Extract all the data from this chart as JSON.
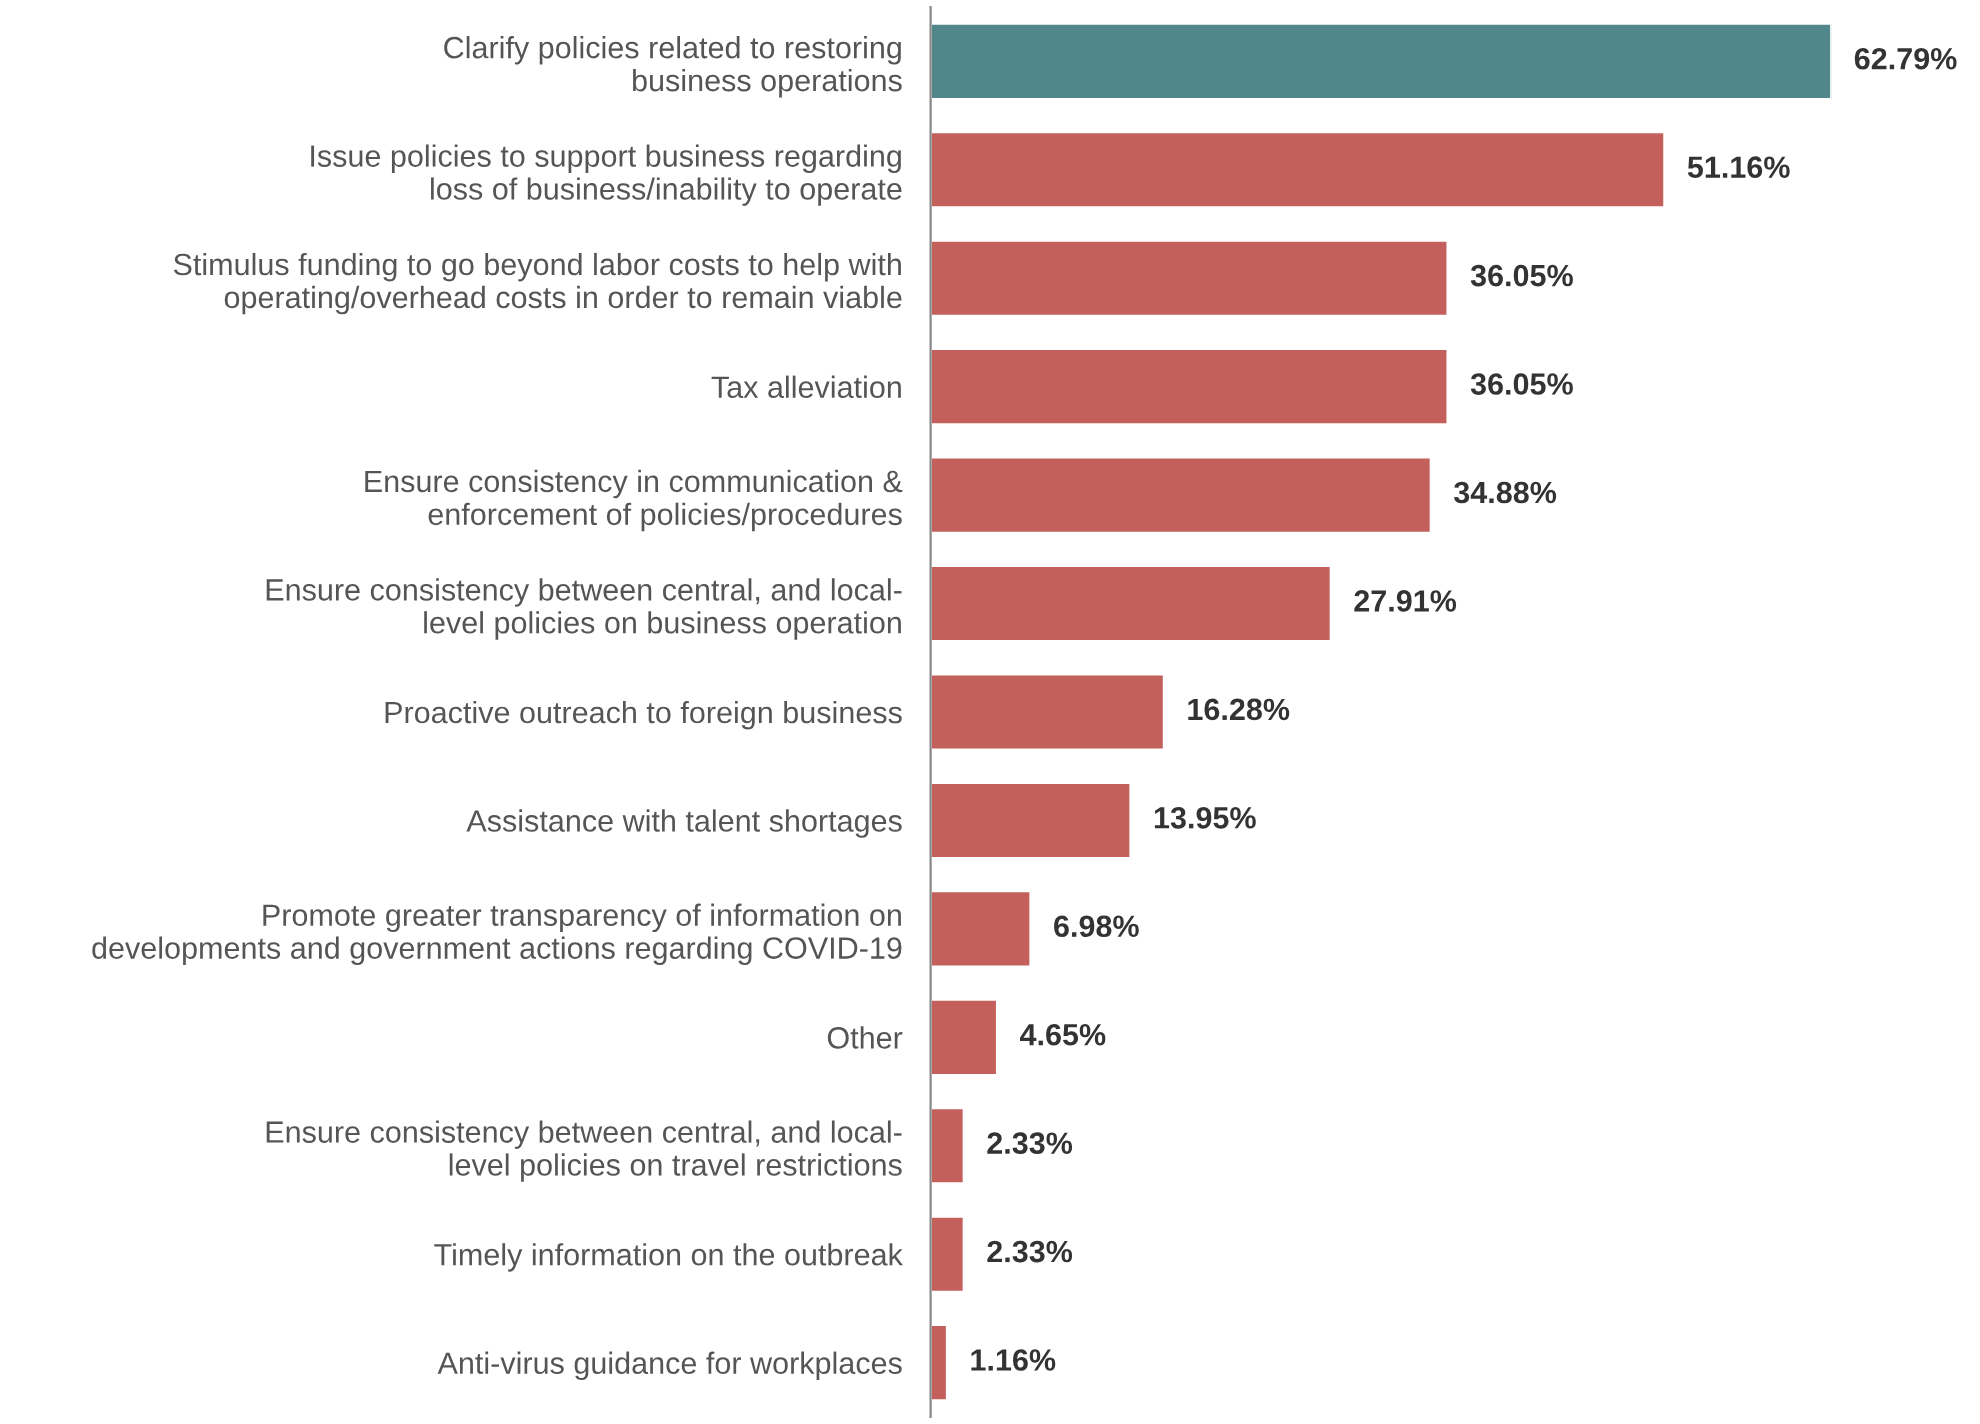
{
  "chart_data": {
    "type": "bar",
    "orientation": "horizontal",
    "categories": [
      "Clarify policies related to restoring\nbusiness operations",
      "Issue policies to support business regarding\nloss of business/inability to operate",
      "Stimulus funding to go beyond labor costs to help with\noperating/overhead costs in order to remain viable",
      "Tax alleviation",
      "Ensure consistency in communication &\nenforcement of policies/procedures",
      "Ensure consistency between central, and local-\nlevel policies on business operation",
      "Proactive outreach to foreign business",
      "Assistance with talent shortages",
      "Promote greater transparency of information on\ndevelopments and government actions regarding COVID-19",
      "Other",
      "Ensure consistency between central, and local-\nlevel policies on travel restrictions",
      "Timely information on the outbreak",
      "Anti-virus guidance for workplaces"
    ],
    "values": [
      62.79,
      51.16,
      36.05,
      36.05,
      34.88,
      27.91,
      16.28,
      13.95,
      6.98,
      4.65,
      2.33,
      2.33,
      1.16
    ],
    "value_labels": [
      "62.79%",
      "51.16%",
      "36.05%",
      "36.05%",
      "34.88%",
      "27.91%",
      "16.28%",
      "13.95%",
      "6.98%",
      "4.65%",
      "2.33%",
      "2.33%",
      "1.16%"
    ],
    "colors": [
      "#51868a",
      "#c4605c",
      "#c4605c",
      "#c4605c",
      "#c4605c",
      "#c4605c",
      "#c4605c",
      "#c4605c",
      "#c4605c",
      "#c4605c",
      "#c4605c",
      "#c4605c",
      "#c4605c"
    ],
    "tick_labels": "y",
    "grid": false,
    "legend": false
  }
}
